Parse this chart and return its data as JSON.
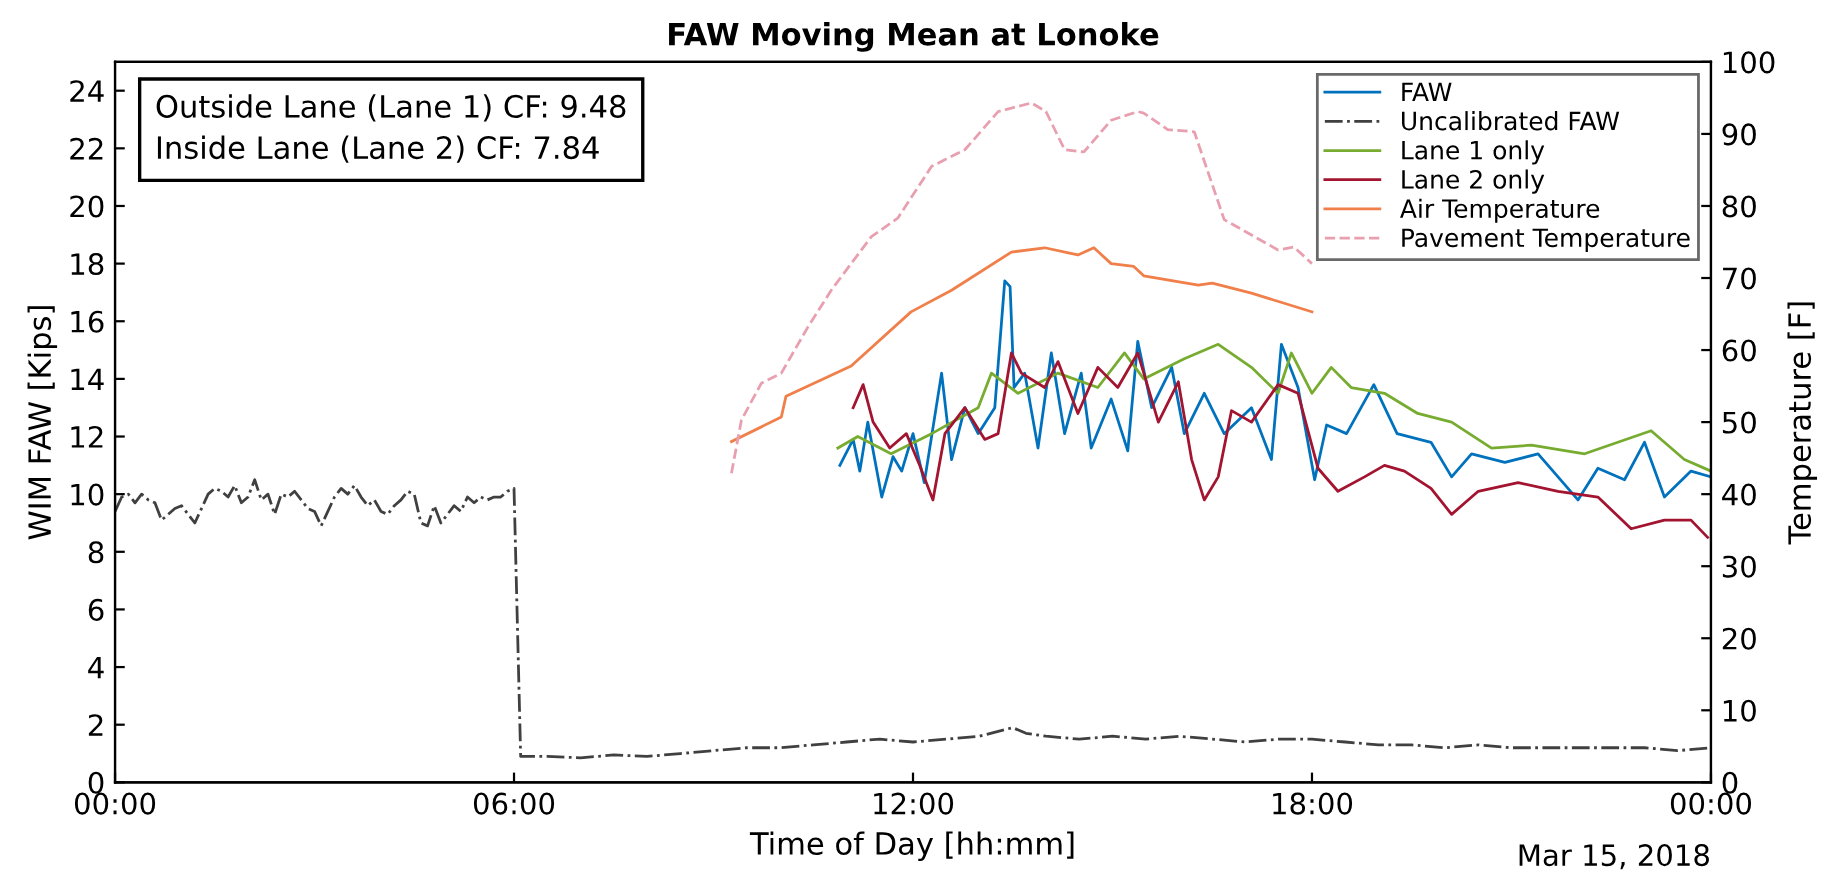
{
  "chart_data": {
    "type": "line",
    "title": "FAW Moving Mean at Lonoke",
    "xlabel": "Time of Day [hh:mm]",
    "ylabel": "WIM FAW [Kips]",
    "y2label": "Temperature [F]",
    "xlim": [
      0,
      24
    ],
    "xticks": [
      {
        "value": 0,
        "label": "00:00"
      },
      {
        "value": 6,
        "label": "06:00"
      },
      {
        "value": 12,
        "label": "12:00"
      },
      {
        "value": 18,
        "label": "18:00"
      },
      {
        "value": 24,
        "label": "00:00"
      }
    ],
    "ylim": [
      0,
      25
    ],
    "yticks": [
      0,
      2,
      4,
      6,
      8,
      10,
      12,
      14,
      16,
      18,
      20,
      22,
      24
    ],
    "y2lim": [
      0,
      100
    ],
    "y2ticks": [
      0,
      10,
      20,
      30,
      40,
      50,
      60,
      70,
      80,
      90,
      100
    ],
    "grid": false,
    "legend": "top right",
    "annotations": [
      "Outside Lane (Lane 1) CF: 9.48\nInside Lane (Lane 2) CF: 7.84",
      "Mar 15, 2018"
    ],
    "series": [
      {
        "name": "FAW",
        "color": "#0072bd",
        "line_style": "solid",
        "x": [
          10.9,
          11.1,
          11.2,
          11.32,
          11.53,
          11.7,
          11.83,
          12.0,
          12.17,
          12.43,
          12.58,
          12.78,
          12.98,
          13.23,
          13.38,
          13.46,
          13.52,
          13.68,
          13.88,
          14.08,
          14.28,
          14.53,
          14.68,
          14.98,
          15.23,
          15.38,
          15.59,
          15.89,
          16.08,
          16.38,
          16.68,
          17.09,
          17.39,
          17.54,
          17.79,
          18.04,
          18.22,
          18.52,
          18.93,
          19.28,
          19.79,
          20.1,
          20.4,
          20.9,
          21.4,
          22.0,
          22.3,
          22.7,
          23.0,
          23.3,
          23.7,
          24.0
        ],
        "values": [
          11.0,
          11.9,
          10.8,
          12.5,
          9.9,
          11.3,
          10.8,
          12.1,
          10.4,
          14.2,
          11.2,
          13.0,
          12.1,
          13.0,
          17.4,
          17.2,
          13.7,
          14.2,
          11.6,
          14.9,
          12.1,
          14.2,
          11.6,
          13.3,
          11.5,
          15.3,
          13.0,
          14.4,
          12.1,
          13.5,
          12.1,
          13.0,
          11.2,
          15.2,
          13.7,
          10.5,
          12.4,
          12.1,
          13.8,
          12.1,
          11.8,
          10.6,
          11.4,
          11.1,
          11.4,
          9.8,
          10.9,
          10.5,
          11.8,
          9.9,
          10.8,
          10.6
        ]
      },
      {
        "name": "Uncalibrated FAW",
        "color": "#404040",
        "line_style": "dashdot",
        "x": [
          0.0,
          0.1,
          0.2,
          0.3,
          0.4,
          0.5,
          0.6,
          0.7,
          0.8,
          0.9,
          1.0,
          1.1,
          1.2,
          1.3,
          1.4,
          1.5,
          1.6,
          1.7,
          1.8,
          1.9,
          2.0,
          2.1,
          2.2,
          2.3,
          2.4,
          2.5,
          2.6,
          2.7,
          2.8,
          2.9,
          3.0,
          3.1,
          3.2,
          3.3,
          3.4,
          3.5,
          3.6,
          3.7,
          3.8,
          3.9,
          4.0,
          4.1,
          4.2,
          4.3,
          4.4,
          4.5,
          4.6,
          4.7,
          4.8,
          4.9,
          5.0,
          5.1,
          5.2,
          5.3,
          5.4,
          5.5,
          5.6,
          5.7,
          5.8,
          5.9,
          6.0,
          6.1,
          6.5,
          7.0,
          7.5,
          8.0,
          8.5,
          9.0,
          9.5,
          10.0,
          10.5,
          11.0,
          11.5,
          12.0,
          12.5,
          13.0,
          13.5,
          13.7,
          14.0,
          14.5,
          15.0,
          15.5,
          16.0,
          16.5,
          17.0,
          17.5,
          18.0,
          18.5,
          19.0,
          19.5,
          20.0,
          20.5,
          21.0,
          21.5,
          22.0,
          22.5,
          23.0,
          23.5,
          24.0
        ],
        "values": [
          9.4,
          9.9,
          10.0,
          9.7,
          10.0,
          9.8,
          9.7,
          9.1,
          9.3,
          9.5,
          9.6,
          9.3,
          9.0,
          9.5,
          10.0,
          10.2,
          10.1,
          9.9,
          10.3,
          9.7,
          9.9,
          10.5,
          9.8,
          10.0,
          9.3,
          10.0,
          9.9,
          10.1,
          9.8,
          9.5,
          9.4,
          8.9,
          9.4,
          9.9,
          10.2,
          10.0,
          10.3,
          9.9,
          9.6,
          9.8,
          9.4,
          9.3,
          9.6,
          9.8,
          10.1,
          10.0,
          9.0,
          8.9,
          9.6,
          9.0,
          9.3,
          9.6,
          9.4,
          9.9,
          9.7,
          9.9,
          9.8,
          9.9,
          9.9,
          10.1,
          10.2,
          0.9,
          0.9,
          0.85,
          0.95,
          0.9,
          1.0,
          1.1,
          1.2,
          1.2,
          1.3,
          1.4,
          1.5,
          1.4,
          1.5,
          1.6,
          1.9,
          1.7,
          1.6,
          1.5,
          1.6,
          1.5,
          1.6,
          1.5,
          1.4,
          1.5,
          1.5,
          1.4,
          1.3,
          1.3,
          1.2,
          1.3,
          1.2,
          1.2,
          1.2,
          1.2,
          1.2,
          1.1,
          1.2
        ]
      },
      {
        "name": "Lane 1 only",
        "color": "#77ac30",
        "line_style": "solid",
        "x": [
          10.87,
          11.17,
          11.67,
          12.28,
          12.98,
          13.18,
          13.58,
          14.18,
          14.78,
          15.18,
          15.47,
          16.08,
          16.59,
          17.09,
          17.49,
          17.69,
          18.0,
          18.29,
          18.59,
          19.09,
          19.59,
          20.1,
          20.7,
          21.3,
          22.1,
          23.1,
          23.6,
          24.0
        ],
        "values": [
          11.6,
          12.0,
          11.4,
          12.1,
          13.0,
          14.2,
          13.5,
          14.2,
          13.7,
          14.9,
          14.0,
          14.7,
          15.2,
          14.4,
          13.5,
          14.9,
          13.5,
          14.4,
          13.7,
          13.5,
          12.8,
          12.5,
          11.6,
          11.7,
          11.4,
          12.2,
          11.2,
          10.8
        ]
      },
      {
        "name": "Lane 2 only",
        "color": "#a2142f",
        "line_style": "solid",
        "x": [
          11.1,
          11.25,
          11.4,
          11.65,
          11.9,
          12.1,
          12.3,
          12.48,
          12.78,
          13.08,
          13.28,
          13.48,
          13.63,
          13.98,
          14.18,
          14.48,
          14.78,
          15.08,
          15.38,
          15.69,
          15.99,
          16.19,
          16.38,
          16.59,
          16.79,
          17.09,
          17.49,
          17.79,
          18.09,
          18.39,
          18.79,
          19.09,
          19.39,
          19.79,
          20.1,
          20.5,
          21.1,
          21.7,
          22.3,
          22.8,
          23.3,
          23.7,
          23.95
        ],
        "values": [
          13.0,
          13.8,
          12.5,
          11.6,
          12.1,
          11.0,
          9.8,
          12.1,
          13.0,
          11.9,
          12.1,
          14.9,
          14.2,
          13.7,
          14.6,
          12.8,
          14.4,
          13.7,
          14.9,
          12.5,
          13.9,
          11.2,
          9.8,
          10.6,
          12.9,
          12.5,
          13.8,
          13.5,
          10.9,
          10.1,
          10.6,
          11.0,
          10.8,
          10.2,
          9.3,
          10.1,
          10.4,
          10.1,
          9.9,
          8.8,
          9.1,
          9.1,
          8.5
        ]
      },
      {
        "name": "Air Temperature",
        "color": "#f07f4a",
        "line_style": "solid",
        "axis": "y2",
        "x": [
          9.27,
          10.02,
          10.09,
          11.07,
          11.97,
          12.58,
          13.48,
          13.98,
          14.48,
          14.72,
          14.98,
          15.32,
          15.47,
          16.29,
          16.5,
          17.09,
          18.0
        ],
        "values": [
          47.3,
          50.7,
          53.6,
          57.8,
          65.3,
          68.3,
          73.6,
          74.2,
          73.2,
          74.2,
          72.0,
          71.6,
          70.3,
          69.0,
          69.3,
          67.9,
          65.3
        ]
      },
      {
        "name": "Pavement Temperature",
        "color": "#e8a0b0",
        "line_style": "dashed",
        "axis": "y2",
        "x": [
          9.27,
          9.42,
          9.72,
          10.02,
          10.42,
          10.77,
          11.37,
          11.77,
          12.28,
          12.78,
          13.28,
          13.78,
          14.0,
          14.28,
          14.57,
          14.98,
          15.38,
          15.47,
          15.83,
          16.23,
          16.68,
          17.49,
          17.73,
          18.0
        ],
        "values": [
          42.9,
          50.3,
          55.4,
          56.8,
          63.2,
          68.3,
          75.7,
          78.3,
          85.5,
          87.8,
          93.1,
          94.3,
          93.1,
          87.8,
          87.5,
          91.9,
          93.1,
          92.9,
          90.6,
          90.3,
          78.1,
          73.9,
          74.3,
          72.0
        ]
      }
    ]
  }
}
